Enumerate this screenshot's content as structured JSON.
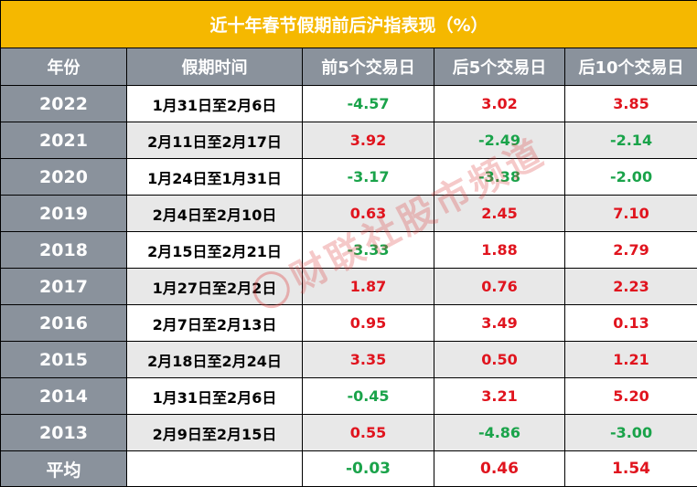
{
  "title": "近十年春节假期前后沪指表现（%）",
  "headers": [
    "年份",
    "假期时间",
    "前5个交易日",
    "后5个交易日",
    "后10个交易日"
  ],
  "rows": [
    {
      "year": "2022",
      "period": "1月31日至2月6日",
      "pre5": "-4.57",
      "post5": "3.02",
      "post10": "3.85"
    },
    {
      "year": "2021",
      "period": "2月11日至2月17日",
      "pre5": "3.92",
      "post5": "-2.49",
      "post10": "-2.14"
    },
    {
      "year": "2020",
      "period": "1月24日至1月31日",
      "pre5": "-3.17",
      "post5": "-3.38",
      "post10": "-2.00"
    },
    {
      "year": "2019",
      "period": "2月4日至2月10日",
      "pre5": "0.63",
      "post5": "2.45",
      "post10": "7.10"
    },
    {
      "year": "2018",
      "period": "2月15日至2月21日",
      "pre5": "-3.33",
      "post5": "1.88",
      "post10": "2.79"
    },
    {
      "year": "2017",
      "period": "1月27日至2月2日",
      "pre5": "1.87",
      "post5": "0.76",
      "post10": "2.23"
    },
    {
      "year": "2016",
      "period": "2月7日至2月13日",
      "pre5": "0.95",
      "post5": "3.49",
      "post10": "0.13"
    },
    {
      "year": "2015",
      "period": "2月18日至2月24日",
      "pre5": "3.35",
      "post5": "0.50",
      "post10": "1.21"
    },
    {
      "year": "2014",
      "period": "1月31日至2月6日",
      "pre5": "-0.45",
      "post5": "3.21",
      "post10": "5.20"
    },
    {
      "year": "2013",
      "period": "2月9日至2月15日",
      "pre5": "0.55",
      "post5": "-4.86",
      "post10": "-3.00"
    }
  ],
  "average": {
    "label": "平均",
    "period": "",
    "pre5": "-0.03",
    "post5": "0.46",
    "post10": "1.54"
  },
  "colors": {
    "title_bg": "#f5b800",
    "header_bg": "#8a929c",
    "positive": "#e0141e",
    "negative": "#1aa34a",
    "alt_row": "#e8e8e8"
  },
  "watermark": {
    "text": "财联社股市频道",
    "logo_icon": "cailianshe-logo-icon"
  }
}
